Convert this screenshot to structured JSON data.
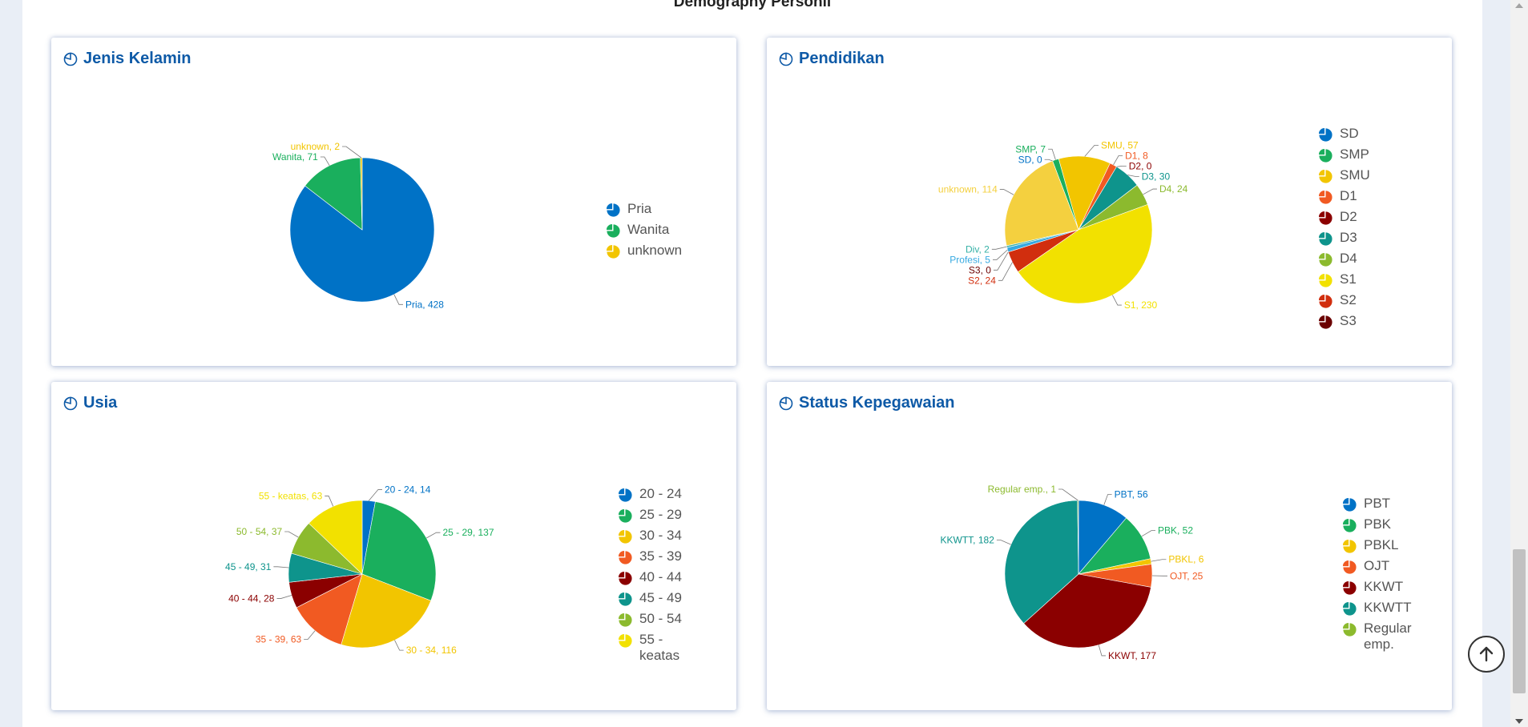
{
  "page": {
    "title": "Demography Personil"
  },
  "cards": [
    {
      "id": "jenis-kelamin",
      "title": "Jenis Kelamin"
    },
    {
      "id": "pendidikan",
      "title": "Pendidikan"
    },
    {
      "id": "usia",
      "title": "Usia"
    },
    {
      "id": "status-kepegawaian",
      "title": "Status Kepegawaian"
    }
  ],
  "chart_data": [
    {
      "type": "pie",
      "title": "Jenis Kelamin",
      "categories": [
        "Pria",
        "Wanita",
        "unknown"
      ],
      "values": [
        428,
        71,
        2
      ],
      "colors": [
        "#0072c6",
        "#1aaf5d",
        "#f2c500"
      ],
      "data_labels": [
        "Pria, 428",
        "Wanita, 71",
        "unknown, 2"
      ],
      "legend": "right"
    },
    {
      "type": "pie",
      "title": "Pendidikan",
      "categories": [
        "SD",
        "SMP",
        "SMU",
        "D1",
        "D2",
        "D3",
        "D4",
        "S1",
        "S2",
        "S3",
        "Profesi",
        "Div",
        "unknown"
      ],
      "values": [
        0,
        7,
        57,
        8,
        0,
        30,
        24,
        230,
        24,
        0,
        5,
        2,
        114
      ],
      "colors": [
        "#0072c6",
        "#1aaf5d",
        "#f2c500",
        "#f15a22",
        "#8b0000",
        "#0e948c",
        "#8cba2e",
        "#f2e100",
        "#d12e0e",
        "#6b0000",
        "#36a9e1",
        "#35b1a6",
        "#f4d03f"
      ],
      "data_labels": [
        "SD, 0",
        "SMP, 7",
        "SMU, 57",
        "D1, 8",
        "D2, 0",
        "D3, 30",
        "D4, 24",
        "S1, 230",
        "S2, 24",
        "S3, 0",
        "Profesi, 5",
        "Div, 2",
        "unknown, 114"
      ],
      "legend_categories": [
        "SD",
        "SMP",
        "SMU",
        "D1",
        "D2",
        "D3",
        "D4",
        "S1",
        "S2",
        "S3"
      ],
      "legend": "right"
    },
    {
      "type": "pie",
      "title": "Usia",
      "categories": [
        "20 - 24",
        "25 - 29",
        "30 - 34",
        "35 - 39",
        "40 - 44",
        "45 - 49",
        "50 - 54",
        "55 - keatas"
      ],
      "values": [
        14,
        137,
        116,
        63,
        28,
        31,
        37,
        63
      ],
      "colors": [
        "#0072c6",
        "#1aaf5d",
        "#f2c500",
        "#f15a22",
        "#8b0000",
        "#0e948c",
        "#8cba2e",
        "#f2e100"
      ],
      "data_labels": [
        "20 - 24, 14",
        "25 - 29, 137",
        "30 - 34, 116",
        "35 - 39, 63",
        "40 - 44, 28",
        "45 - 49, 31",
        "50 - 54, 37",
        "55 - keatas, 63"
      ],
      "legend": "right"
    },
    {
      "type": "pie",
      "title": "Status Kepegawaian",
      "categories": [
        "PBT",
        "PBK",
        "PBKL",
        "OJT",
        "KKWT",
        "KKWTT",
        "Regular emp."
      ],
      "values": [
        56,
        52,
        6,
        25,
        177,
        182,
        1
      ],
      "colors": [
        "#0072c6",
        "#1aaf5d",
        "#f2c500",
        "#f15a22",
        "#8b0000",
        "#0e948c",
        "#8cba2e"
      ],
      "data_labels": [
        "PBT, 56",
        "PBK, 52",
        "PBKL, 6",
        "OJT, 25",
        "KKWT, 177",
        "KKWTT, 182",
        "Regular emp., 1"
      ],
      "legend": "right"
    }
  ]
}
